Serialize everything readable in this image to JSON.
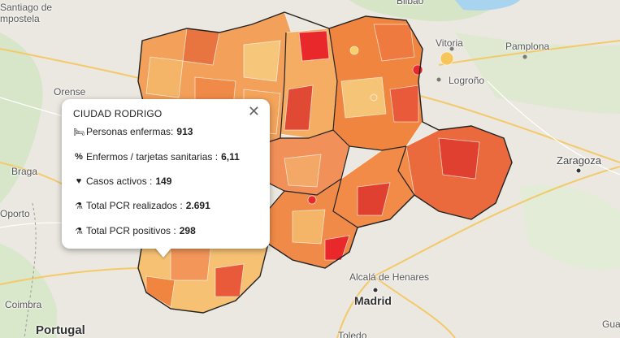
{
  "map": {
    "places": [
      {
        "id": "santiago1",
        "label": "Santiago de"
      },
      {
        "id": "santiago2",
        "label": "mpostela"
      },
      {
        "id": "bilbao",
        "label": "Bilbao"
      },
      {
        "id": "vitoria",
        "label": "Vitoria"
      },
      {
        "id": "pamplona",
        "label": "Pamplona"
      },
      {
        "id": "logrono",
        "label": "Logroño"
      },
      {
        "id": "orense",
        "label": "Orense"
      },
      {
        "id": "zaragoza",
        "label": "Zaragoza"
      },
      {
        "id": "braga",
        "label": "Braga"
      },
      {
        "id": "oporto",
        "label": "Oporto"
      },
      {
        "id": "alcala",
        "label": "Alcalá de Henares"
      },
      {
        "id": "madrid",
        "label": "Madrid"
      },
      {
        "id": "coimbra",
        "label": "Coimbra"
      },
      {
        "id": "portugal",
        "label": "Portugal"
      },
      {
        "id": "toledo",
        "label": "Toledo"
      },
      {
        "id": "guadalajara",
        "label": "Gua"
      }
    ]
  },
  "popup": {
    "title": "CIUDAD RODRIGO",
    "close_symbol": "✕",
    "rows": [
      {
        "icon": "bed-icon",
        "glyph": "🛏",
        "label": "Personas enfermas:",
        "value": "913"
      },
      {
        "icon": "percent-icon",
        "glyph": "%",
        "label": "Enfermos / tarjetas sanitarias :",
        "value": "6,11"
      },
      {
        "icon": "heartbeat-icon",
        "glyph": "♥",
        "label": "Casos activos :",
        "value": "149"
      },
      {
        "icon": "flask-icon",
        "glyph": "⚗",
        "label": "Total PCR realizados :",
        "value": "2.691"
      },
      {
        "icon": "flask-icon",
        "glyph": "⚗",
        "label": "Total PCR positivos :",
        "value": "298"
      }
    ]
  }
}
